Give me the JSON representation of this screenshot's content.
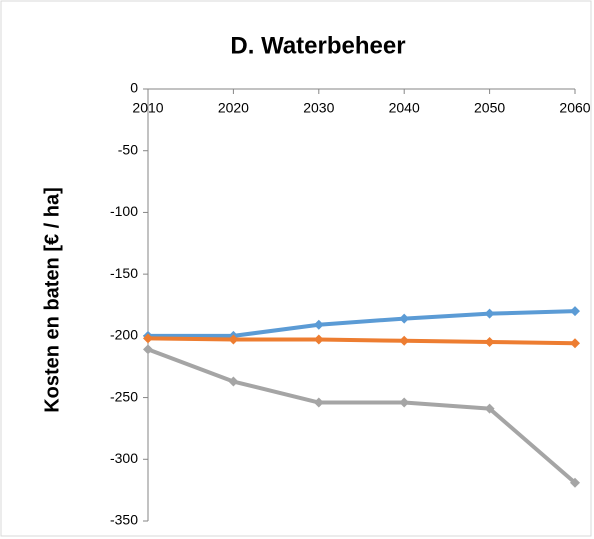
{
  "chart_data": {
    "type": "line",
    "title": "D. Waterbeheer",
    "y_label": "Kosten en baten [€ / ha]",
    "categories": [
      "2010",
      "2020",
      "2030",
      "2040",
      "2050",
      "2060"
    ],
    "series": [
      {
        "color": "#5b9bd5",
        "values": [
          -200,
          -200,
          -191,
          -186,
          -182,
          -180
        ]
      },
      {
        "color": "#ed7d31",
        "values": [
          -202,
          -203,
          -203,
          -204,
          -205,
          -206
        ]
      },
      {
        "color": "#a5a5a5",
        "values": [
          -211,
          -237,
          -254,
          -254,
          -259,
          -319
        ]
      }
    ],
    "ylim": [
      -350,
      0
    ],
    "yticks": [
      0,
      -50,
      -100,
      -150,
      -200,
      -250,
      -300,
      -350
    ],
    "grid": false
  }
}
